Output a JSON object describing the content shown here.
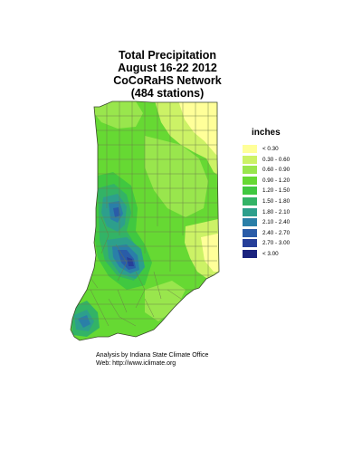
{
  "title": {
    "line1": "Total Precipitation",
    "line2": "August 16-22 2012",
    "line3": "CoCoRaHS Network",
    "line4": "(484 stations)"
  },
  "legend": {
    "title": "inches",
    "items": [
      {
        "label": "< 0.30",
        "color": "#ffff99"
      },
      {
        "label": "0.30 - 0.60",
        "color": "#ccf266"
      },
      {
        "label": "0.60 - 0.90",
        "color": "#99e64d"
      },
      {
        "label": "0.90 - 1.20",
        "color": "#66d933"
      },
      {
        "label": "1.20 - 1.50",
        "color": "#40c840"
      },
      {
        "label": "1.50 - 1.80",
        "color": "#33b366"
      },
      {
        "label": "1.80 - 2.10",
        "color": "#2d9f8c"
      },
      {
        "label": "2.10 - 2.40",
        "color": "#2a7fa8"
      },
      {
        "label": "2.40 - 2.70",
        "color": "#2a5ca8"
      },
      {
        "label": "2.70 - 3.00",
        "color": "#263f99"
      },
      {
        "label": "< 3.00",
        "color": "#1a237e"
      }
    ]
  },
  "credits": {
    "line1": "Analysis by Indiana State Climate Office",
    "line2": "Web:   http://www.iclimate.org"
  }
}
